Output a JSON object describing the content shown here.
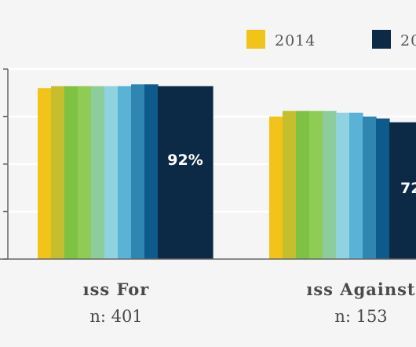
{
  "chart_data": {
    "type": "bar",
    "ylim": [
      0,
      100
    ],
    "grid": true,
    "legend": [
      "2014",
      "20"
    ],
    "categories": [
      {
        "title": "ıss For",
        "n": "n: 401",
        "label": "92%",
        "values": [
          90,
          91,
          91,
          91,
          91,
          91,
          91,
          92,
          92,
          91
        ]
      },
      {
        "title": "ıss Against",
        "n": "n: 153",
        "label": "72",
        "values": [
          75,
          78,
          78,
          78,
          78,
          77,
          77,
          75,
          74,
          72
        ]
      }
    ],
    "series_colors": [
      "#f2c318",
      "#c5bf2e",
      "#7dc243",
      "#8fcc56",
      "#8dcc9c",
      "#8fd3e0",
      "#5ab3d6",
      "#2f86b0",
      "#0e5a8c",
      "#0c2a45"
    ]
  }
}
